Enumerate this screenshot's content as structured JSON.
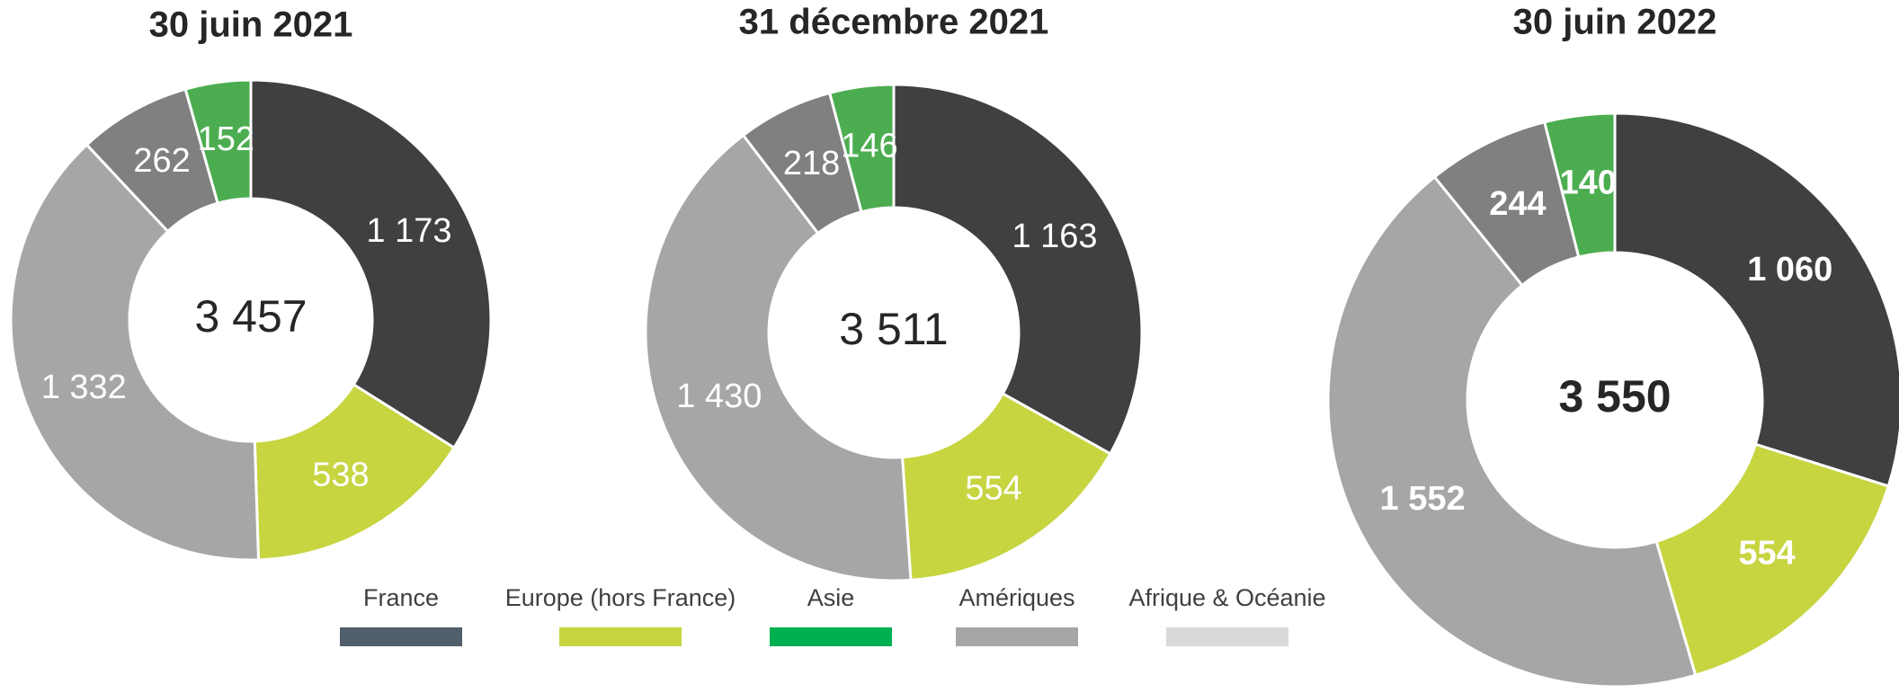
{
  "chart_data": [
    {
      "type": "pie",
      "title": "30 juin 2021",
      "categories": [
        "France",
        "Europe (hors France)",
        "Amériques",
        "Afrique & Océanie",
        "Asie"
      ],
      "values": [
        1173,
        538,
        1332,
        262,
        152
      ],
      "value_labels": [
        "1 173",
        "538",
        "1 332",
        "262",
        "152"
      ],
      "colors": [
        "#404040",
        "#c6d540",
        "#a6a6a6",
        "#808080",
        "#4cad50"
      ],
      "total": {
        "value": 3457,
        "label": "3 457"
      },
      "bold": false
    },
    {
      "type": "pie",
      "title": "31 décembre 2021",
      "categories": [
        "France",
        "Europe (hors France)",
        "Amériques",
        "Afrique & Océanie",
        "Asie"
      ],
      "values": [
        1163,
        554,
        1430,
        218,
        146
      ],
      "value_labels": [
        "1 163",
        "554",
        "1 430",
        "218",
        "146"
      ],
      "colors": [
        "#404040",
        "#c6d540",
        "#a6a6a6",
        "#808080",
        "#4cad50"
      ],
      "total": {
        "value": 3511,
        "label": "3 511"
      },
      "bold": false
    },
    {
      "type": "pie",
      "title": "30 juin 2022",
      "categories": [
        "France",
        "Europe (hors France)",
        "Amériques",
        "Afrique & Océanie",
        "Asie"
      ],
      "values": [
        1060,
        554,
        1552,
        244,
        140
      ],
      "value_labels": [
        "1 060",
        "554",
        "1 552",
        "244",
        "140"
      ],
      "colors": [
        "#404040",
        "#c6d540",
        "#a6a6a6",
        "#808080",
        "#4cad50"
      ],
      "total": {
        "value": 3550,
        "label": "3 550"
      },
      "bold": true
    }
  ],
  "legend": [
    {
      "name": "France",
      "color": "#515e6b"
    },
    {
      "name": "Europe (hors France)",
      "color": "#c6d540"
    },
    {
      "name": "Asie",
      "color": "#00b050"
    },
    {
      "name": "Amériques",
      "color": "#a6a6a6"
    },
    {
      "name": "Afrique & Océanie",
      "color": "#d9d9d9"
    }
  ]
}
